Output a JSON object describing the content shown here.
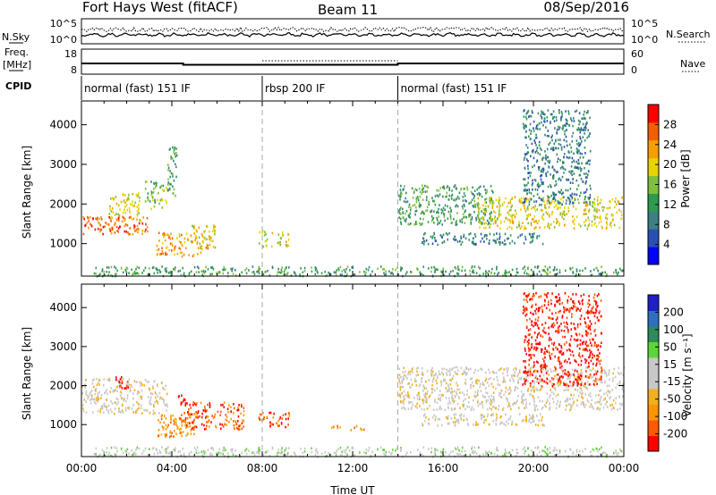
{
  "header": {
    "station": "Fort Hays West (fitACF)",
    "beam": "Beam 11",
    "date": "08/Sep/2016"
  },
  "colors": {
    "power": [
      "#0000ff",
      "#2a4fb0",
      "#3d7f83",
      "#2f9a4f",
      "#7fbf3f",
      "#e8d400",
      "#f5a000",
      "#f06000",
      "#ff0000"
    ],
    "velocity": [
      "#ff0000",
      "#ff5a00",
      "#ff9500",
      "#f0b020",
      "#c8c8c8",
      "#c8c8c8",
      "#5fd43a",
      "#2e8b57",
      "#2f6fbf",
      "#2020c8"
    ],
    "line": "#000000",
    "boundary": "#aaaaaa"
  },
  "chart_data": [
    {
      "type": "line",
      "panel": "nsky",
      "ylabel_left": "N.Sky",
      "ylabel_right": "N.Search",
      "legend_right_style": "dotted",
      "ticks_left": [
        "10^5",
        "10^0"
      ],
      "ticks_right": [
        "10^5",
        "10^0"
      ],
      "note": "sky noise and search noise traces vs time"
    },
    {
      "type": "line",
      "panel": "freq",
      "ylabel_left_lines": [
        "Freq.",
        "[MHz]"
      ],
      "ylabel_right": "Nave",
      "legend_right_style": "dotted",
      "ticks_left": [
        "18",
        "8"
      ],
      "ticks_right": [
        "60",
        "0"
      ],
      "note": "operating frequency (solid) and number of averages (dotted)"
    },
    {
      "type": "table",
      "panel": "cpid",
      "label": "CPID",
      "segments": [
        {
          "start_hour": 0,
          "end_hour": 8,
          "label": "normal (fast) 151 IF"
        },
        {
          "start_hour": 8,
          "end_hour": 14,
          "label": "rbsp 200 IF"
        },
        {
          "start_hour": 14,
          "end_hour": 24,
          "label": "normal (fast) 151 IF"
        }
      ]
    },
    {
      "type": "heatmap",
      "panel": "power",
      "ylabel": "Slant Range [km]",
      "xlim_hours": [
        0,
        24
      ],
      "ylim_km": [
        180,
        4600
      ],
      "y_ticks": [
        1000,
        2000,
        3000,
        4000
      ],
      "colorbar": {
        "label": "Power [dB]",
        "ticks": [
          "4",
          "8",
          "12",
          "16",
          "20",
          "24",
          "28"
        ],
        "range": [
          0,
          32
        ]
      },
      "scatter_regions": [
        {
          "t0": 0.0,
          "t1": 2.9,
          "r0": 1250,
          "r1": 1700,
          "level": 7
        },
        {
          "t0": 1.2,
          "t1": 2.6,
          "r0": 1600,
          "r1": 2300,
          "level": 5
        },
        {
          "t0": 2.8,
          "t1": 3.8,
          "r0": 1900,
          "r1": 2600,
          "level": 4
        },
        {
          "t0": 3.8,
          "t1": 4.2,
          "r0": 2200,
          "r1": 3500,
          "level": 3
        },
        {
          "t0": 3.3,
          "t1": 5.6,
          "r0": 700,
          "r1": 1300,
          "level": 6
        },
        {
          "t0": 4.8,
          "t1": 5.9,
          "r0": 900,
          "r1": 1500,
          "level": 5
        },
        {
          "t0": 7.8,
          "t1": 9.2,
          "r0": 950,
          "r1": 1350,
          "level": 5
        },
        {
          "t0": 0.5,
          "t1": 24.0,
          "r0": 200,
          "r1": 450,
          "level": 3
        },
        {
          "t0": 14.0,
          "t1": 18.2,
          "r0": 1500,
          "r1": 2500,
          "level": 3
        },
        {
          "t0": 17.5,
          "t1": 23.9,
          "r0": 1400,
          "r1": 2200,
          "level": 5
        },
        {
          "t0": 15.0,
          "t1": 20.5,
          "r0": 1000,
          "r1": 1300,
          "level": 2
        },
        {
          "t0": 19.5,
          "t1": 22.5,
          "r0": 2000,
          "r1": 4400,
          "level": 2
        }
      ]
    },
    {
      "type": "heatmap",
      "panel": "velocity",
      "ylabel": "Slant Range [km]",
      "xlabel": "Time UT",
      "xlim_hours": [
        0,
        24
      ],
      "ylim_km": [
        180,
        4600
      ],
      "y_ticks": [
        1000,
        2000,
        3000,
        4000
      ],
      "x_ticks": [
        "00:00",
        "04:00",
        "08:00",
        "12:00",
        "16:00",
        "20:00",
        "00:00"
      ],
      "colorbar": {
        "label": "Velocity [m s⁻¹]",
        "ticks": [
          "-200",
          "-100",
          "-50",
          "-15",
          "15",
          "50",
          "100",
          "200"
        ]
      },
      "scatter_regions": [
        {
          "t0": 0.0,
          "t1": 3.8,
          "r0": 1300,
          "r1": 2200,
          "level": 4
        },
        {
          "t0": 1.5,
          "t1": 2.1,
          "r0": 1900,
          "r1": 2300,
          "level": 0
        },
        {
          "t0": 3.3,
          "t1": 5.0,
          "r0": 700,
          "r1": 1300,
          "level": 2
        },
        {
          "t0": 4.3,
          "t1": 7.2,
          "r0": 900,
          "r1": 1600,
          "level": 1
        },
        {
          "t0": 4.2,
          "t1": 4.6,
          "r0": 1500,
          "r1": 1800,
          "level": 0
        },
        {
          "t0": 7.8,
          "t1": 9.2,
          "r0": 950,
          "r1": 1350,
          "level": 1
        },
        {
          "t0": 11.0,
          "t1": 12.5,
          "r0": 880,
          "r1": 1000,
          "level": 2
        },
        {
          "t0": 0.5,
          "t1": 24.0,
          "r0": 200,
          "r1": 450,
          "level": 5
        },
        {
          "t0": 14.0,
          "t1": 24.0,
          "r0": 1400,
          "r1": 2500,
          "level": 4
        },
        {
          "t0": 15.0,
          "t1": 20.5,
          "r0": 1000,
          "r1": 1300,
          "level": 4
        },
        {
          "t0": 19.5,
          "t1": 23.0,
          "r0": 2000,
          "r1": 4400,
          "level": 0
        }
      ]
    }
  ]
}
